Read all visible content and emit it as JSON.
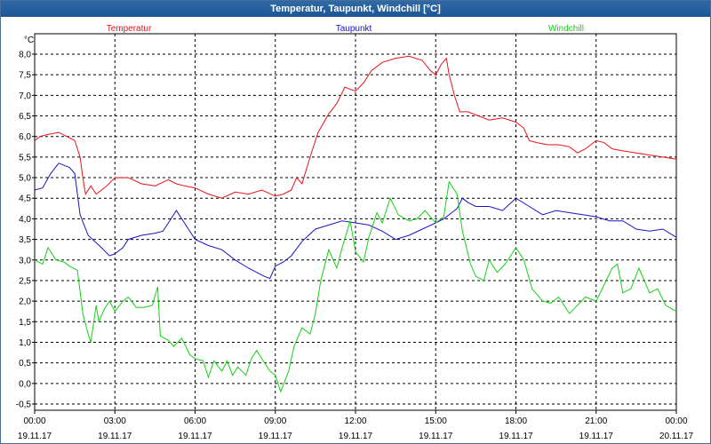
{
  "window": {
    "title": "Temperatur, Taupunkt, Windchill [°C]"
  },
  "colors": {
    "series1": "#e8131b",
    "series2": "#1814c2",
    "series3": "#15d115",
    "grid": "#000000",
    "axis": "#000000",
    "text": "#000000"
  },
  "chart_data": {
    "type": "line",
    "title": "Temperatur, Taupunkt, Windchill [°C]",
    "ylabel": "°C",
    "xlabel": "",
    "ylim": [
      -0.5,
      8.2
    ],
    "xlim": [
      0,
      24
    ],
    "grid": true,
    "legend_position": "top",
    "yticks": [
      "8,0",
      "7,5",
      "7,0",
      "6,5",
      "6,0",
      "5,5",
      "5,0",
      "4,5",
      "4,0",
      "3,5",
      "3,0",
      "2,5",
      "2,0",
      "1,5",
      "1,0",
      "0,5",
      "0,0",
      "-0,5"
    ],
    "xticks": [
      {
        "time": "00:00",
        "date": "19.11.17"
      },
      {
        "time": "03:00",
        "date": "19.11.17"
      },
      {
        "time": "06:00",
        "date": "19.11.17"
      },
      {
        "time": "09:00",
        "date": "19.11.17"
      },
      {
        "time": "12:00",
        "date": "19.11.17"
      },
      {
        "time": "15:00",
        "date": "19.11.17"
      },
      {
        "time": "18:00",
        "date": "19.11.17"
      },
      {
        "time": "21:00",
        "date": "19.11.17"
      },
      {
        "time": "00:00",
        "date": "20.11.17"
      }
    ],
    "series": [
      {
        "name": "Temperatur",
        "color": "#e8131b",
        "x": [
          0,
          0.2,
          0.5,
          0.9,
          1.2,
          1.5,
          1.7,
          1.8,
          1.9,
          2.1,
          2.3,
          2.5,
          2.7,
          3.0,
          3.5,
          4.0,
          4.5,
          5.0,
          5.3,
          5.6,
          6.0,
          6.5,
          7.0,
          7.5,
          8.0,
          8.5,
          9.0,
          9.3,
          9.6,
          9.8,
          10.0,
          10.3,
          10.6,
          11.0,
          11.3,
          11.6,
          12.0,
          12.3,
          12.6,
          13.0,
          13.5,
          14.0,
          14.5,
          14.8,
          15.0,
          15.2,
          15.4,
          15.5,
          15.7,
          15.9,
          16.2,
          16.6,
          17.0,
          17.5,
          18.0,
          18.3,
          18.5,
          18.8,
          19.2,
          19.6,
          20.0,
          20.3,
          20.6,
          21.0,
          21.3,
          21.6,
          22.0,
          22.5,
          23.0,
          23.5,
          24.0
        ],
        "values": [
          5.9,
          6.0,
          6.05,
          6.1,
          6.0,
          5.9,
          5.5,
          5.0,
          4.6,
          4.8,
          4.6,
          4.7,
          4.8,
          5.0,
          5.0,
          4.85,
          4.8,
          4.95,
          4.85,
          4.8,
          4.75,
          4.6,
          4.5,
          4.65,
          4.6,
          4.7,
          4.55,
          4.6,
          4.7,
          5.0,
          4.85,
          5.5,
          6.1,
          6.55,
          6.8,
          7.2,
          7.1,
          7.3,
          7.6,
          7.8,
          7.9,
          7.95,
          7.85,
          7.6,
          7.5,
          7.75,
          7.9,
          7.5,
          7.0,
          6.6,
          6.6,
          6.5,
          6.4,
          6.45,
          6.35,
          6.2,
          5.9,
          5.85,
          5.8,
          5.8,
          5.75,
          5.6,
          5.7,
          5.9,
          5.85,
          5.7,
          5.65,
          5.6,
          5.55,
          5.5,
          5.45
        ]
      },
      {
        "name": "Taupunkt",
        "color": "#1814c2",
        "x": [
          0,
          0.3,
          0.6,
          0.9,
          1.1,
          1.3,
          1.5,
          1.7,
          2.0,
          2.5,
          2.8,
          3.0,
          3.3,
          3.5,
          4.0,
          4.5,
          4.8,
          5.0,
          5.3,
          5.6,
          6.0,
          6.5,
          7.0,
          7.5,
          8.0,
          8.3,
          8.6,
          8.8,
          9.0,
          9.3,
          9.6,
          10.0,
          10.5,
          11.0,
          11.5,
          12.0,
          12.5,
          13.0,
          13.5,
          14.0,
          14.5,
          15.0,
          15.3,
          15.6,
          15.8,
          16.0,
          16.2,
          16.5,
          17.0,
          17.5,
          18.0,
          18.5,
          19.0,
          19.5,
          20.0,
          20.5,
          21.0,
          21.5,
          22.0,
          22.5,
          23.0,
          23.5,
          24.0
        ],
        "values": [
          4.7,
          4.75,
          5.1,
          5.35,
          5.3,
          5.25,
          5.1,
          4.1,
          3.6,
          3.3,
          3.1,
          3.15,
          3.3,
          3.5,
          3.6,
          3.65,
          3.7,
          3.9,
          4.2,
          3.9,
          3.5,
          3.35,
          3.25,
          3.0,
          2.8,
          2.7,
          2.6,
          2.55,
          2.85,
          2.95,
          3.1,
          3.45,
          3.75,
          3.85,
          3.95,
          3.9,
          3.85,
          3.7,
          3.5,
          3.6,
          3.75,
          3.9,
          4.0,
          4.15,
          4.25,
          4.5,
          4.4,
          4.3,
          4.3,
          4.2,
          4.5,
          4.3,
          4.1,
          4.2,
          4.15,
          4.1,
          4.05,
          3.95,
          3.95,
          3.75,
          3.7,
          3.75,
          3.55
        ]
      },
      {
        "name": "Windchill",
        "color": "#15d115",
        "x": [
          0,
          0.3,
          0.5,
          0.8,
          1.1,
          1.3,
          1.6,
          1.8,
          2.0,
          2.1,
          2.3,
          2.4,
          2.6,
          2.8,
          3.0,
          3.3,
          3.5,
          3.8,
          4.1,
          4.4,
          4.6,
          4.7,
          5.0,
          5.2,
          5.5,
          5.8,
          6.0,
          6.3,
          6.5,
          6.7,
          7.0,
          7.2,
          7.4,
          7.6,
          7.9,
          8.1,
          8.3,
          8.6,
          8.8,
          9.0,
          9.2,
          9.5,
          9.7,
          10.0,
          10.3,
          10.5,
          10.7,
          11.0,
          11.3,
          11.5,
          11.8,
          12.0,
          12.3,
          12.5,
          12.8,
          13.0,
          13.3,
          13.6,
          14.0,
          14.3,
          14.6,
          15.0,
          15.3,
          15.5,
          15.8,
          16.0,
          16.3,
          16.5,
          16.8,
          17.0,
          17.3,
          17.6,
          18.0,
          18.3,
          18.6,
          19.0,
          19.3,
          19.6,
          20.0,
          20.3,
          20.6,
          21.0,
          21.3,
          21.6,
          21.8,
          22.0,
          22.3,
          22.6,
          23.0,
          23.3,
          23.6,
          24.0
        ],
        "values": [
          3.0,
          2.9,
          3.3,
          3.0,
          2.95,
          2.85,
          2.75,
          1.7,
          1.2,
          1.0,
          1.9,
          1.5,
          1.8,
          2.0,
          1.75,
          2.0,
          2.1,
          1.85,
          1.85,
          1.9,
          2.35,
          1.15,
          1.05,
          0.9,
          1.1,
          0.7,
          0.6,
          0.55,
          0.15,
          0.55,
          0.3,
          0.55,
          0.2,
          0.4,
          0.2,
          0.6,
          0.8,
          0.5,
          0.3,
          0.2,
          -0.2,
          0.3,
          0.9,
          1.35,
          1.2,
          1.7,
          2.5,
          3.25,
          2.8,
          3.3,
          3.95,
          3.2,
          2.95,
          3.55,
          4.15,
          3.9,
          4.5,
          4.1,
          3.95,
          4.0,
          4.2,
          3.9,
          4.05,
          4.9,
          4.6,
          3.7,
          2.9,
          2.6,
          2.5,
          3.0,
          2.7,
          2.9,
          3.3,
          3.0,
          2.3,
          2.0,
          1.95,
          2.1,
          1.7,
          1.9,
          2.1,
          2.0,
          2.4,
          2.8,
          2.9,
          2.2,
          2.3,
          2.8,
          2.2,
          2.3,
          1.9,
          1.75
        ]
      }
    ]
  }
}
